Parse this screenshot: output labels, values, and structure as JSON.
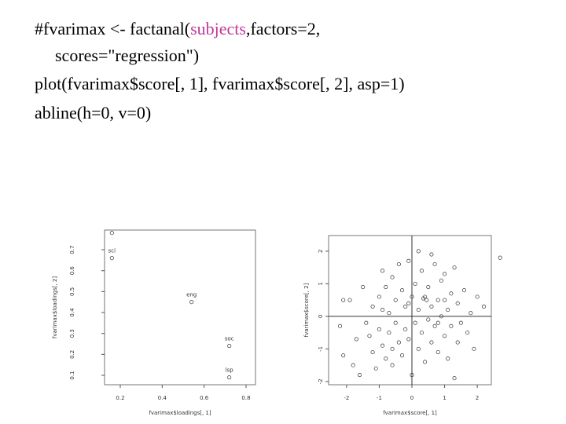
{
  "code": {
    "line1": [
      "#fvarimax <- factanal(",
      "subjects",
      ",factors=2,"
    ],
    "line2": "scores=\"regression\")",
    "line3": "plot(fvarimax$score[, 1], fvarimax$score[, 2], asp=1)",
    "line4": "abline(h=0, v=0)"
  },
  "chart_data": [
    {
      "type": "scatter",
      "xlabel": "fvarimax$loadings[, 1]",
      "ylabel": "fvarimax$loadings[, 2]",
      "x": [
        0.16,
        0.16,
        0.54,
        0.72,
        0.72
      ],
      "values": [
        0.78,
        0.66,
        0.45,
        0.24,
        0.09
      ],
      "point_labels": [
        null,
        "sci",
        "eng",
        "soc",
        "lsp"
      ],
      "xlim": [
        0.125,
        0.845
      ],
      "ylim": [
        0.055,
        0.794
      ],
      "xticks": [
        0.2,
        0.4,
        0.6,
        0.8
      ],
      "yticks": [
        0.1,
        0.2,
        0.3,
        0.4,
        0.5,
        0.6,
        0.7
      ]
    },
    {
      "type": "scatter",
      "xlabel": "fvarimax$score[, 1]",
      "ylabel": "fvarimax$score[, 2]",
      "x": [
        -2.1,
        -1.9,
        -2.2,
        -2.1,
        -1.8,
        -1.5,
        -1.4,
        -1.3,
        -1.2,
        -1.2,
        -1.1,
        -1.0,
        -1.0,
        -0.9,
        -0.9,
        -0.9,
        -0.8,
        -0.8,
        -0.7,
        -0.7,
        -0.6,
        -0.6,
        -0.5,
        -0.5,
        -0.4,
        -0.4,
        -0.3,
        -0.3,
        -0.2,
        -0.2,
        -0.1,
        -0.1,
        0.0,
        0.0,
        0.1,
        0.1,
        0.2,
        0.2,
        0.3,
        0.3,
        0.4,
        0.4,
        0.5,
        0.5,
        0.6,
        0.6,
        0.7,
        0.7,
        0.8,
        0.8,
        0.9,
        0.9,
        1.0,
        1.0,
        1.1,
        1.1,
        1.2,
        1.2,
        1.3,
        1.4,
        1.4,
        1.5,
        1.6,
        1.7,
        1.8,
        1.9,
        2.0,
        2.2,
        2.7,
        -1.6,
        0.2,
        -0.6,
        0.6,
        -1.7,
        1.3,
        0.45,
        0.35,
        -0.1,
        0.8,
        1.0
      ],
      "values": [
        0.5,
        0.5,
        -0.3,
        -1.2,
        -1.5,
        0.9,
        -0.2,
        -0.6,
        0.3,
        -1.1,
        -1.6,
        0.6,
        -0.4,
        1.4,
        0.2,
        -0.9,
        -1.3,
        0.9,
        0.1,
        -0.5,
        1.2,
        -1.5,
        0.5,
        -0.2,
        1.6,
        -0.8,
        0.8,
        -1.2,
        0.3,
        -0.4,
        1.7,
        -0.7,
        0.6,
        -1.8,
        1.0,
        -0.2,
        0.2,
        -1.0,
        1.4,
        -0.5,
        0.6,
        -1.4,
        0.9,
        -0.1,
        0.3,
        -0.8,
        1.6,
        -0.3,
        0.5,
        -1.1,
        1.1,
        0.0,
        -0.6,
        1.3,
        0.2,
        -1.3,
        0.7,
        -0.3,
        1.5,
        -0.8,
        0.4,
        -0.2,
        0.8,
        -0.5,
        0.1,
        -1.0,
        0.6,
        0.3,
        1.8,
        -1.8,
        2.0,
        -1.0,
        1.9,
        -0.7,
        -1.9,
        0.5,
        0.55,
        0.4,
        -0.2,
        0.5
      ],
      "xlim": [
        -2.55,
        2.43
      ],
      "ylim": [
        -2.1,
        2.48
      ],
      "xticks": [
        -2,
        -1,
        0,
        1,
        2
      ],
      "yticks": [
        -2,
        -1,
        0,
        1,
        2
      ],
      "hline": 0,
      "vline": 0
    }
  ]
}
